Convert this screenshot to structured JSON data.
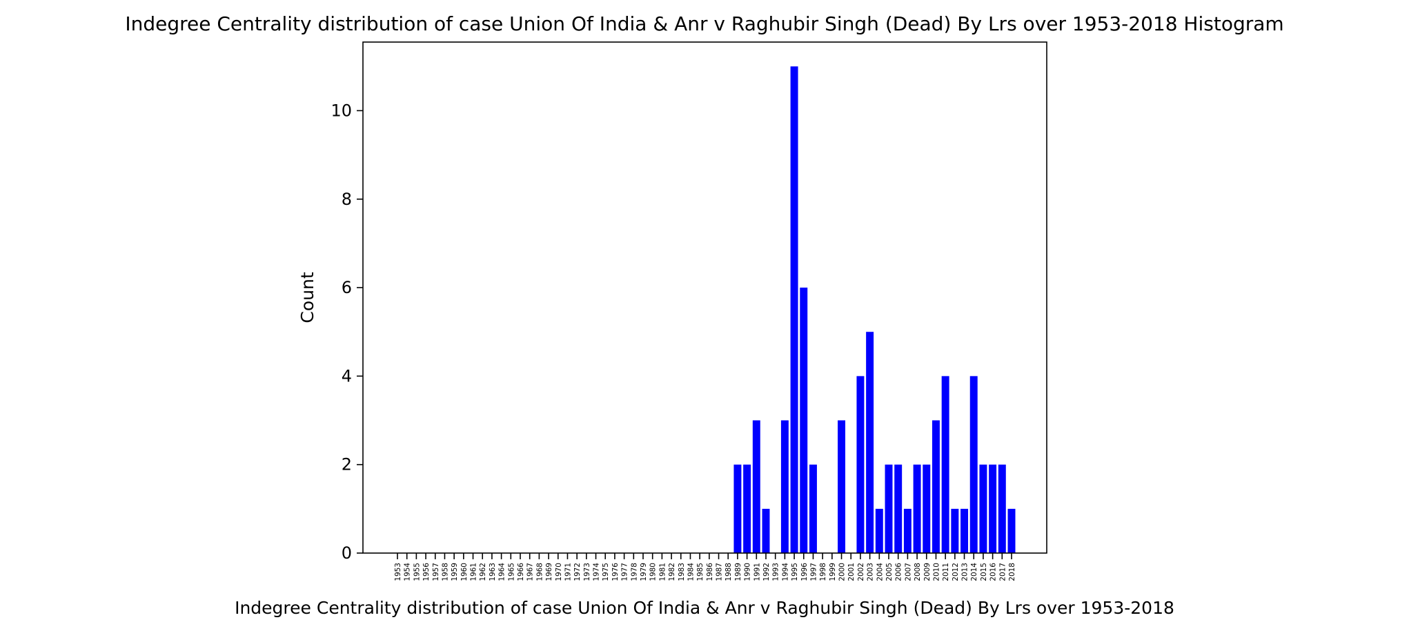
{
  "chart_data": {
    "type": "bar",
    "title": "Indegree Centrality distribution of case Union Of India & Anr v Raghubir Singh (Dead) By Lrs over 1953-2018 Histogram",
    "xlabel": "Indegree Centrality distribution of case Union Of India & Anr v Raghubir Singh (Dead) By Lrs over 1953-2018",
    "ylabel": "Count",
    "categories": [
      "1953",
      "1954",
      "1955",
      "1956",
      "1957",
      "1958",
      "1959",
      "1960",
      "1961",
      "1962",
      "1963",
      "1964",
      "1965",
      "1966",
      "1967",
      "1968",
      "1969",
      "1970",
      "1971",
      "1972",
      "1973",
      "1974",
      "1975",
      "1976",
      "1977",
      "1978",
      "1979",
      "1980",
      "1981",
      "1982",
      "1983",
      "1984",
      "1985",
      "1986",
      "1987",
      "1988",
      "1989",
      "1990",
      "1991",
      "1992",
      "1993",
      "1994",
      "1995",
      "1996",
      "1997",
      "1998",
      "1999",
      "2000",
      "2001",
      "2002",
      "2003",
      "2004",
      "2005",
      "2006",
      "2007",
      "2008",
      "2009",
      "2010",
      "2011",
      "2012",
      "2013",
      "2014",
      "2015",
      "2016",
      "2017",
      "2018"
    ],
    "values": [
      0,
      0,
      0,
      0,
      0,
      0,
      0,
      0,
      0,
      0,
      0,
      0,
      0,
      0,
      0,
      0,
      0,
      0,
      0,
      0,
      0,
      0,
      0,
      0,
      0,
      0,
      0,
      0,
      0,
      0,
      0,
      0,
      0,
      0,
      0,
      0,
      2,
      2,
      3,
      1,
      0,
      3,
      11,
      6,
      2,
      0,
      0,
      3,
      0,
      4,
      5,
      1,
      2,
      2,
      1,
      2,
      2,
      3,
      4,
      1,
      1,
      4,
      2,
      2,
      2,
      1
    ],
    "ylim": [
      0,
      11.55
    ],
    "yticks": [
      0,
      2,
      4,
      6,
      8,
      10
    ],
    "bar_color": "#0000ff",
    "grid": false,
    "legend": "none"
  }
}
